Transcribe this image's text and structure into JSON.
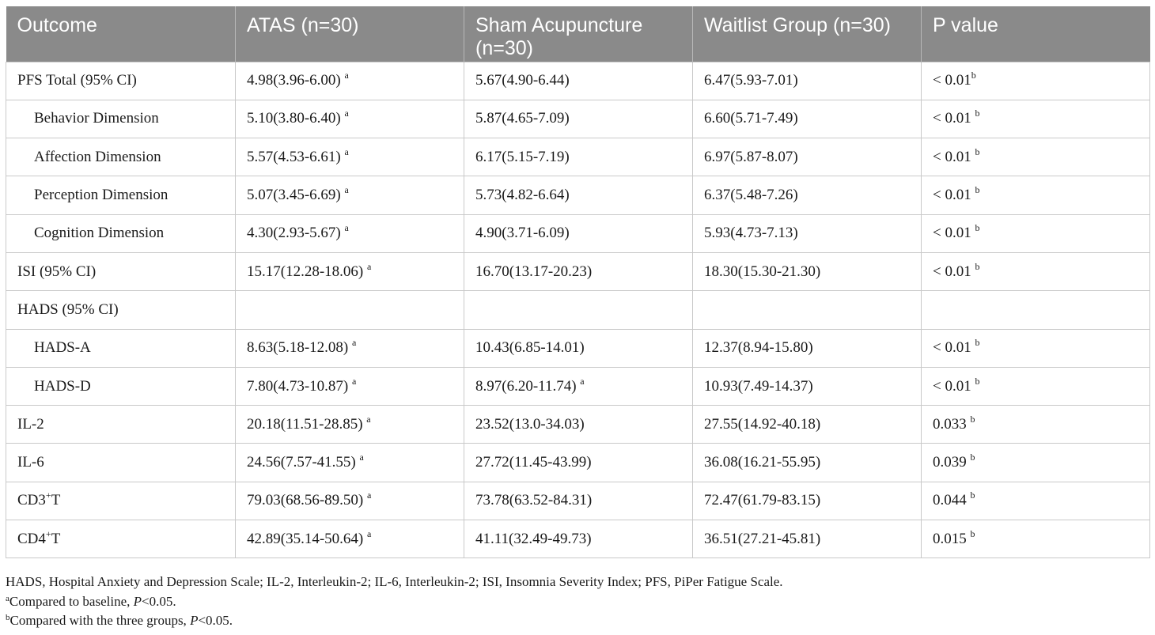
{
  "table": {
    "headers": [
      "Outcome",
      "ATAS (n=30)",
      "Sham Acupuncture (n=30)",
      "Waitlist Group (n=30)",
      "P value"
    ],
    "rows": [
      {
        "indent": false,
        "cells": [
          {
            "t": "PFS Total (95% CI)"
          },
          {
            "t": "4.98(3.96-6.00) ",
            "s": "a"
          },
          {
            "t": "5.67(4.90-6.44)"
          },
          {
            "t": "6.47(5.93-7.01)"
          },
          {
            "t": "< 0.01",
            "s": "b"
          }
        ]
      },
      {
        "indent": true,
        "cells": [
          {
            "t": "Behavior Dimension"
          },
          {
            "t": "5.10(3.80-6.40) ",
            "s": "a"
          },
          {
            "t": "5.87(4.65-7.09)"
          },
          {
            "t": "6.60(5.71-7.49)"
          },
          {
            "t": "< 0.01 ",
            "s": "b"
          }
        ]
      },
      {
        "indent": true,
        "cells": [
          {
            "t": "Affection Dimension"
          },
          {
            "t": "5.57(4.53-6.61) ",
            "s": "a"
          },
          {
            "t": "6.17(5.15-7.19)"
          },
          {
            "t": "6.97(5.87-8.07)"
          },
          {
            "t": "< 0.01 ",
            "s": "b"
          }
        ]
      },
      {
        "indent": true,
        "cells": [
          {
            "t": "Perception Dimension"
          },
          {
            "t": "5.07(3.45-6.69) ",
            "s": "a"
          },
          {
            "t": "5.73(4.82-6.64)"
          },
          {
            "t": "6.37(5.48-7.26)"
          },
          {
            "t": "< 0.01 ",
            "s": "b"
          }
        ]
      },
      {
        "indent": true,
        "cells": [
          {
            "t": "Cognition Dimension"
          },
          {
            "t": "4.30(2.93-5.67) ",
            "s": "a"
          },
          {
            "t": "4.90(3.71-6.09)"
          },
          {
            "t": "5.93(4.73-7.13)"
          },
          {
            "t": "< 0.01 ",
            "s": "b"
          }
        ]
      },
      {
        "indent": false,
        "cells": [
          {
            "t": "ISI (95% CI)"
          },
          {
            "t": "15.17(12.28-18.06) ",
            "s": "a"
          },
          {
            "t": "16.70(13.17-20.23)"
          },
          {
            "t": "18.30(15.30-21.30)"
          },
          {
            "t": "< 0.01 ",
            "s": "b"
          }
        ]
      },
      {
        "indent": false,
        "cells": [
          {
            "t": "HADS (95% CI)"
          },
          {
            "t": ""
          },
          {
            "t": ""
          },
          {
            "t": ""
          },
          {
            "t": ""
          }
        ]
      },
      {
        "indent": true,
        "cells": [
          {
            "t": "HADS-A"
          },
          {
            "t": "8.63(5.18-12.08) ",
            "s": "a"
          },
          {
            "t": "10.43(6.85-14.01)"
          },
          {
            "t": "12.37(8.94-15.80)"
          },
          {
            "t": "< 0.01 ",
            "s": "b"
          }
        ]
      },
      {
        "indent": true,
        "cells": [
          {
            "t": "HADS-D"
          },
          {
            "t": "7.80(4.73-10.87) ",
            "s": "a"
          },
          {
            "t": "8.97(6.20-11.74) ",
            "s": "a"
          },
          {
            "t": "10.93(7.49-14.37)"
          },
          {
            "t": "< 0.01 ",
            "s": "b"
          }
        ]
      },
      {
        "indent": false,
        "cells": [
          {
            "t": "IL-2"
          },
          {
            "t": "20.18(11.51-28.85) ",
            "s": "a"
          },
          {
            "t": "23.52(13.0-34.03)"
          },
          {
            "t": "27.55(14.92-40.18)"
          },
          {
            "t": "0.033 ",
            "s": "b"
          }
        ]
      },
      {
        "indent": false,
        "cells": [
          {
            "t": "IL-6"
          },
          {
            "t": "24.56(7.57-41.55) ",
            "s": "a"
          },
          {
            "t": "27.72(11.45-43.99)"
          },
          {
            "t": "36.08(16.21-55.95)"
          },
          {
            "t": "0.039 ",
            "s": "b"
          }
        ]
      },
      {
        "indent": false,
        "cells": [
          {
            "t": "CD3",
            "s": "+",
            "t2": "T"
          },
          {
            "t": "79.03(68.56-89.50) ",
            "s": "a"
          },
          {
            "t": "73.78(63.52-84.31)"
          },
          {
            "t": "72.47(61.79-83.15)"
          },
          {
            "t": "0.044 ",
            "s": "b"
          }
        ]
      },
      {
        "indent": false,
        "cells": [
          {
            "t": "CD4",
            "s": "+",
            "t2": "T"
          },
          {
            "t": "42.89(35.14-50.64) ",
            "s": "a"
          },
          {
            "t": "41.11(32.49-49.73)"
          },
          {
            "t": "36.51(27.21-45.81)"
          },
          {
            "t": "0.015 ",
            "s": "b"
          }
        ]
      }
    ]
  },
  "footnotes": {
    "abbrev": "HADS, Hospital Anxiety and Depression Scale; IL-2, Interleukin-2; IL-6, Interleukin-2; ISI, Insomnia Severity Index; PFS, PiPer Fatigue Scale.",
    "a_mark": "a",
    "a_text": "Compared to baseline, ",
    "a_p": "P",
    "a_end": "<0.05.",
    "b_mark": "b",
    "b_text": "Compared with the three groups, ",
    "b_p": "P",
    "b_end": "<0.05."
  }
}
